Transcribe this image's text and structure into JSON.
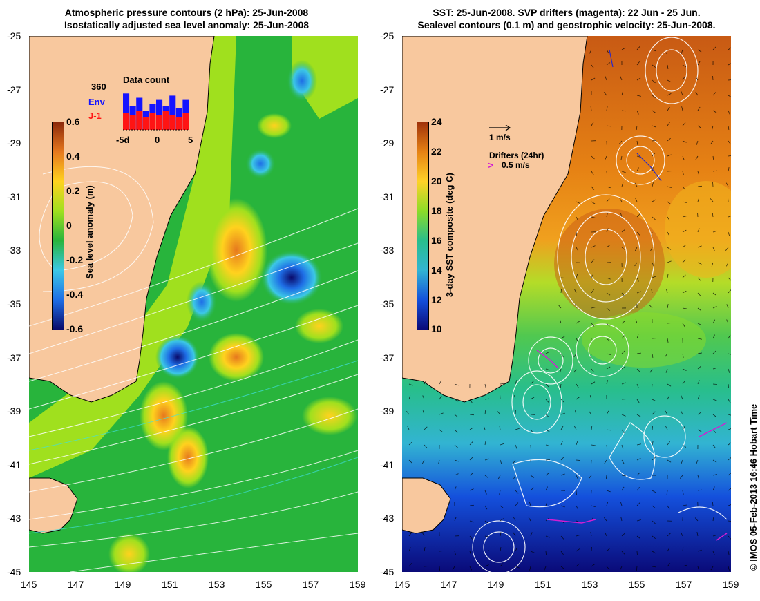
{
  "left_panel": {
    "title_line1": "Atmospheric pressure contours (2 hPa): 25-Jun-2008",
    "title_line2": "Isostatically adjusted sea level anomaly: 25-Jun-2008",
    "colorbar_label": "Sea level anomaly (m)",
    "colorbar_ticks": [
      "0.6",
      "0.4",
      "0.2",
      "0",
      "-0.2",
      "-0.4",
      "-0.6"
    ],
    "inset": {
      "title": "Data count",
      "count_label": "360",
      "series1_label": "Env",
      "series2_label": "J-1",
      "xticks": [
        "-5d",
        "0",
        "5"
      ],
      "env_values": [
        0.85,
        0.55,
        0.75,
        0.45,
        0.6,
        0.7,
        0.55,
        0.8,
        0.5,
        0.7
      ],
      "j1_values": [
        0.4,
        0.35,
        0.45,
        0.3,
        0.4,
        0.35,
        0.45,
        0.35,
        0.3,
        0.4
      ]
    }
  },
  "right_panel": {
    "title_line1": "SST: 25-Jun-2008. SVP drifters (magenta): 22 Jun - 25 Jun.",
    "title_line2": "Sealevel contours (0.1 m) and geostrophic velocity: 25-Jun-2008.",
    "colorbar_label": "3-day SST composite (deg C)",
    "colorbar_ticks": [
      "24",
      "22",
      "20",
      "18",
      "16",
      "14",
      "12",
      "10"
    ],
    "velocity_key": "1 m/s",
    "drifters_key": "Drifters (24hr)",
    "drifters_speed": "0.5 m/s"
  },
  "axes": {
    "y_ticks": [
      "-25",
      "-27",
      "-29",
      "-31",
      "-33",
      "-35",
      "-37",
      "-39",
      "-41",
      "-43",
      "-45"
    ],
    "x_ticks": [
      "145",
      "147",
      "149",
      "151",
      "153",
      "155",
      "157",
      "159"
    ]
  },
  "credit": "© IMOS 05-Feb-2013 16:46 Hobart Time",
  "colors": {
    "land": "#f8c89e",
    "sla_ramp": [
      "#0a0a6a",
      "#1e6ee6",
      "#3cc8e6",
      "#28b43c",
      "#a0e01e",
      "#ffd21e",
      "#e6781e",
      "#8c280a"
    ],
    "sst_ramp": [
      "#0a0a78",
      "#1450dc",
      "#32b4d2",
      "#28be8c",
      "#8cdc28",
      "#ffd228",
      "#e68214",
      "#a0320a"
    ],
    "drifter": "#d21ed2"
  }
}
